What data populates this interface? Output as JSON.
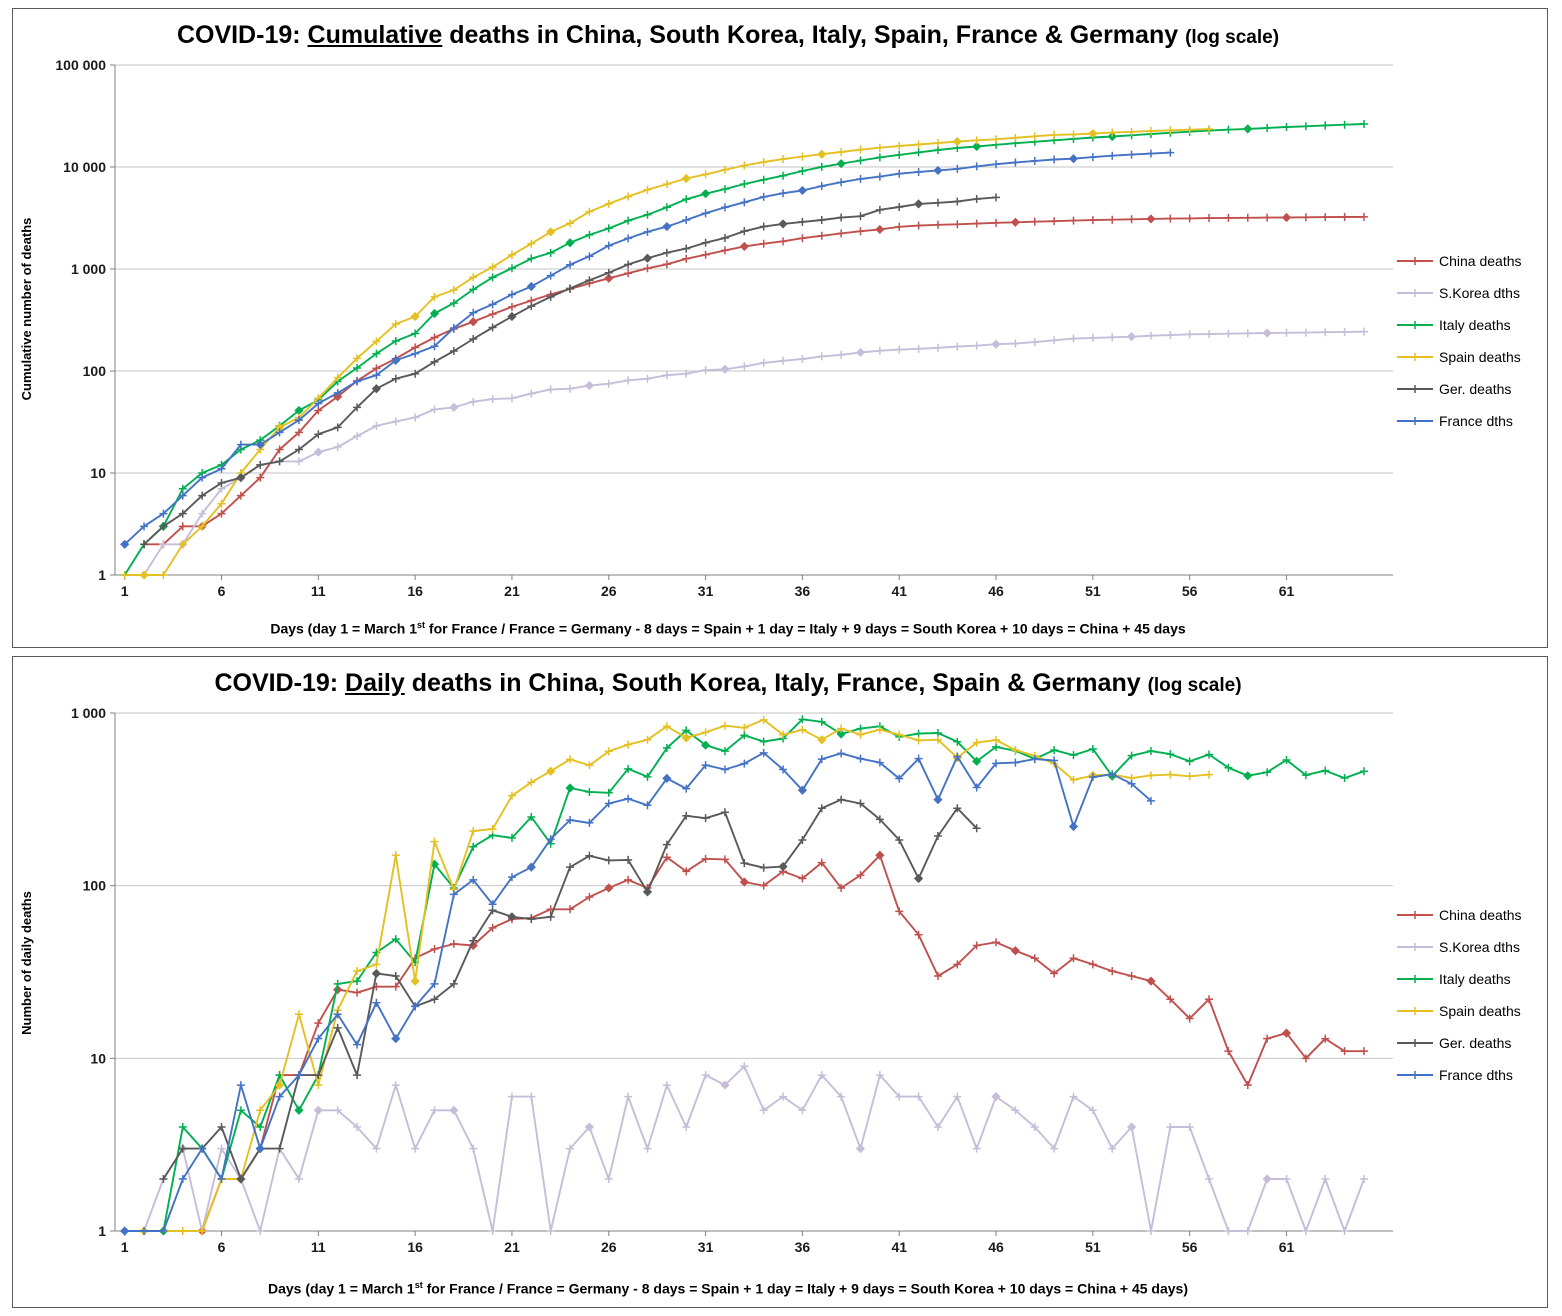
{
  "chart_data": [
    {
      "type": "line",
      "log_scale": true,
      "title": {
        "prefix": "COVID-19: ",
        "emphasis": "Cumulative",
        "middle": " deaths in China, South Korea, Italy, Spain, France & Germany ",
        "suffix": "(log scale)"
      },
      "ylabel": "Cumulative number of deaths",
      "xlabel": {
        "part1": "Days (day 1 = March 1",
        "sup": "st",
        "part2": " for France / France = Germany - 8 days = Spain + 1 day = Italy + 9 days = South Korea + 10 days = China + 45 days"
      },
      "ylim": [
        1,
        100000
      ],
      "xlim": [
        0.5,
        66.5
      ],
      "x_ticks": [
        1,
        6,
        11,
        16,
        21,
        26,
        31,
        36,
        41,
        46,
        51,
        56,
        61
      ],
      "y_tick_labels": [
        "100 000",
        "10 000",
        "1 000",
        "100",
        "10",
        "1"
      ],
      "grid_color": "#C6C6C6",
      "axis_color": "#808080",
      "legend_position": "right",
      "series": [
        {
          "id": "china",
          "name": "China deaths",
          "color": "#C0504D",
          "x_start": 2,
          "diamond_offset": 5,
          "values": [
            2,
            2,
            3,
            3,
            4,
            6,
            9,
            17,
            25,
            41,
            56,
            80,
            106,
            132,
            170,
            213,
            259,
            304,
            361,
            425,
            490,
            563,
            637,
            722,
            811,
            908,
            1016,
            1113,
            1259,
            1380,
            1523,
            1665,
            1770,
            1868,
            2004,
            2118,
            2236,
            2345,
            2442,
            2592,
            2663,
            2715,
            2744,
            2788,
            2835,
            2870,
            2912,
            2943,
            2981,
            3013,
            3042,
            3070,
            3097,
            3119,
            3136,
            3158,
            3169,
            3176,
            3189,
            3199,
            3213,
            3226,
            3237,
            3245
          ]
        },
        {
          "id": "skorea",
          "name": "S.Korea dths",
          "color": "#C6BDD8",
          "x_start": 2,
          "diamond_offset": 4,
          "values": [
            1,
            2,
            2,
            4,
            7,
            9,
            12,
            13,
            13,
            16,
            18,
            23,
            29,
            32,
            35,
            42,
            44,
            50,
            53,
            54,
            60,
            66,
            67,
            72,
            75,
            81,
            84,
            91,
            94,
            102,
            104,
            111,
            120,
            126,
            131,
            139,
            144,
            152,
            158,
            162,
            165,
            169,
            174,
            177,
            183,
            186,
            192,
            200,
            208,
            211,
            214,
            217,
            222,
            225,
            229,
            230,
            232,
            234,
            236,
            237,
            238,
            240,
            242,
            243
          ]
        },
        {
          "id": "italy",
          "name": "Italy deaths",
          "color": "#00B050",
          "x_start": 1,
          "diamond_offset": 3,
          "values": [
            1,
            2,
            3,
            7,
            10,
            12,
            17,
            21,
            29,
            41,
            52,
            79,
            107,
            148,
            197,
            233,
            366,
            463,
            631,
            827,
            1016,
            1266,
            1441,
            1809,
            2158,
            2503,
            2978,
            3405,
            4032,
            4825,
            5476,
            6077,
            6820,
            7503,
            8215,
            9134,
            10023,
            10779,
            11591,
            12428,
            13155,
            13915,
            14681,
            15362,
            15887,
            16523,
            17127,
            17669,
            18279,
            18849,
            19468,
            19899,
            20465,
            21067,
            21645,
            22170,
            22745,
            23227,
            23660,
            24114,
            24648,
            25085,
            25549,
            25969,
            26384
          ]
        },
        {
          "id": "spain",
          "name": "Spain deaths",
          "color": "#E4C022",
          "x_start": 1,
          "diamond_offset": 2,
          "values": [
            1,
            1,
            1,
            2,
            3,
            5,
            10,
            17,
            28,
            35,
            54,
            86,
            133,
            195,
            289,
            342,
            533,
            623,
            830,
            1043,
            1375,
            1772,
            2311,
            2808,
            3647,
            4365,
            5138,
            5982,
            6803,
            7716,
            8464,
            9387,
            10348,
            11198,
            11947,
            12641,
            13341,
            14045,
            14792,
            15447,
            16081,
            16606,
            17209,
            17756,
            18255,
            18708,
            19315,
            20002,
            20639,
            20852,
            21282,
            21717,
            22157,
            22524,
            22902,
            23190,
            23521
          ]
        },
        {
          "id": "germany",
          "name": "Ger. deaths",
          "color": "#595959",
          "x_start": 2,
          "diamond_offset": 0,
          "values": [
            2,
            3,
            4,
            6,
            8,
            9,
            12,
            13,
            17,
            24,
            28,
            44,
            67,
            84,
            94,
            123,
            157,
            206,
            267,
            342,
            433,
            533,
            645,
            775,
            920,
            1107,
            1275,
            1444,
            1584,
            1810,
            2016,
            2349,
            2607,
            2767,
            2894,
            3022,
            3194,
            3294,
            3804,
            4052,
            4352,
            4459,
            4586,
            4862,
            5033
          ]
        },
        {
          "id": "france",
          "name": "France dths",
          "color": "#4472C4",
          "x_start": 1,
          "diamond_offset": 1,
          "values": [
            2,
            3,
            4,
            6,
            9,
            11,
            19,
            19,
            25,
            33,
            48,
            61,
            79,
            91,
            127,
            148,
            175,
            264,
            372,
            450,
            562,
            674,
            860,
            1100,
            1331,
            1696,
            1995,
            2314,
            2606,
            3024,
            3523,
            4021,
            4503,
            5091,
            5532,
            5889,
            6494,
            7091,
            7632,
            8044,
            8598,
            8943,
            9253,
            9588,
            10129,
            10643,
            11060,
            11478,
            11842,
            12069,
            12513,
            12900,
            13236,
            13547,
            13852
          ]
        }
      ]
    },
    {
      "type": "line",
      "log_scale": true,
      "title": {
        "prefix": "COVID-19: ",
        "emphasis": "Daily",
        "middle": " deaths in China, South Korea, Italy, France, Spain & Germany ",
        "suffix": "(log scale)"
      },
      "ylabel": "Number of daily deaths",
      "xlabel": {
        "part1": "Days (day 1 = March 1",
        "sup": "st",
        "part2": " for France / France = Germany - 8 days = Spain + 1 day = Italy + 9 days = South Korea + 10 days = China + 45 days)"
      },
      "ylim": [
        1,
        1000
      ],
      "xlim": [
        0.5,
        66.5
      ],
      "x_ticks": [
        1,
        6,
        11,
        16,
        21,
        26,
        31,
        36,
        41,
        46,
        51,
        56,
        61
      ],
      "y_tick_labels": [
        "1 000",
        "100",
        "10",
        "1"
      ],
      "grid_color": "#C6C6C6",
      "axis_color": "#808080",
      "legend_position": "right",
      "series": [
        {
          "id": "china",
          "name": "China deaths",
          "color": "#C0504D",
          "x_start": 2,
          "diamond_offset": 5,
          "values": [
            1,
            1,
            1,
            1,
            2,
            2,
            3,
            8,
            8,
            16,
            25,
            24,
            26,
            26,
            38,
            43,
            46,
            45,
            57,
            64,
            65,
            73,
            73,
            86,
            97,
            108,
            97,
            146,
            121,
            143,
            142,
            105,
            100,
            121,
            110,
            136,
            97,
            115,
            150,
            71,
            52,
            30,
            35,
            45,
            47,
            42,
            38,
            31,
            38,
            35,
            32,
            30,
            28,
            22,
            17,
            22,
            11,
            7,
            13,
            14,
            10,
            13,
            11,
            11
          ]
        },
        {
          "id": "skorea",
          "name": "S.Korea dths",
          "color": "#C6BDD8",
          "x_start": 2,
          "diamond_offset": 4,
          "values": [
            1,
            2,
            3,
            1,
            3,
            2,
            1,
            3,
            2,
            5,
            5,
            4,
            3,
            7,
            3,
            5,
            5,
            3,
            1,
            6,
            6,
            1,
            3,
            4,
            2,
            6,
            3,
            7,
            4,
            8,
            7,
            9,
            5,
            6,
            5,
            8,
            6,
            3,
            8,
            6,
            6,
            4,
            6,
            3,
            6,
            5,
            4,
            3,
            6,
            5,
            3,
            4,
            1,
            4,
            4,
            2,
            1,
            1,
            2,
            2,
            1,
            2,
            1,
            2
          ]
        },
        {
          "id": "italy",
          "name": "Italy deaths",
          "color": "#00B050",
          "x_start": 1,
          "diamond_offset": 3,
          "values": [
            1,
            1,
            1,
            4,
            3,
            2,
            5,
            4,
            8,
            5,
            8,
            27,
            28,
            41,
            49,
            36,
            133,
            97,
            168,
            196,
            189,
            250,
            175,
            368,
            349,
            345,
            475,
            427,
            627,
            793,
            651,
            601,
            743,
            683,
            712,
            919,
            889,
            756,
            812,
            837,
            727,
            760,
            766,
            681,
            525,
            636,
            604,
            542,
            610,
            570,
            619,
            431,
            566,
            602,
            578,
            525,
            575,
            482,
            433,
            454,
            534,
            437,
            464,
            420,
            460
          ]
        },
        {
          "id": "spain",
          "name": "Spain deaths",
          "color": "#E4C022",
          "x_start": 2,
          "diamond_offset": 2,
          "values": [
            1,
            1,
            1,
            1,
            2,
            2,
            5,
            7,
            18,
            7,
            19,
            32,
            35,
            150,
            28,
            180,
            95,
            207,
            213,
            332,
            397,
            460,
            539,
            497,
            600,
            656,
            700,
            838,
            718,
            773,
            844,
            821,
            913,
            748,
            800,
            700,
            812,
            750,
            800,
            749,
            694,
            700,
            550,
            674,
            698,
            610,
            565,
            510,
            410,
            435,
            440,
            420,
            435,
            440,
            430,
            440
          ]
        },
        {
          "id": "germany",
          "name": "Ger. deaths",
          "color": "#595959",
          "x_start": 3,
          "diamond_offset": 0,
          "values": [
            2,
            3,
            3,
            4,
            2,
            3,
            3,
            8,
            8,
            15,
            8,
            31,
            30,
            20,
            22,
            27,
            48,
            72,
            66,
            64,
            66,
            128,
            149,
            140,
            141,
            92,
            173,
            254,
            246,
            266,
            135,
            127,
            129,
            184,
            281,
            315,
            299,
            242,
            184,
            110,
            194,
            281,
            215
          ]
        },
        {
          "id": "france",
          "name": "France dths",
          "color": "#4472C4",
          "x_start": 1,
          "diamond_offset": 1,
          "values": [
            1,
            1,
            1,
            2,
            3,
            2,
            7,
            3,
            6,
            8,
            13,
            18,
            12,
            21,
            13,
            20,
            27,
            89,
            108,
            78,
            112,
            128,
            186,
            240,
            231,
            299,
            319,
            292,
            418,
            365,
            499,
            471,
            509,
            588,
            471,
            357,
            541,
            584,
            544,
            516,
            417,
            544,
            315,
            560,
            370,
            511,
            516,
            541,
            531,
            220,
            425,
            442,
            389,
            310
          ]
        }
      ]
    }
  ]
}
